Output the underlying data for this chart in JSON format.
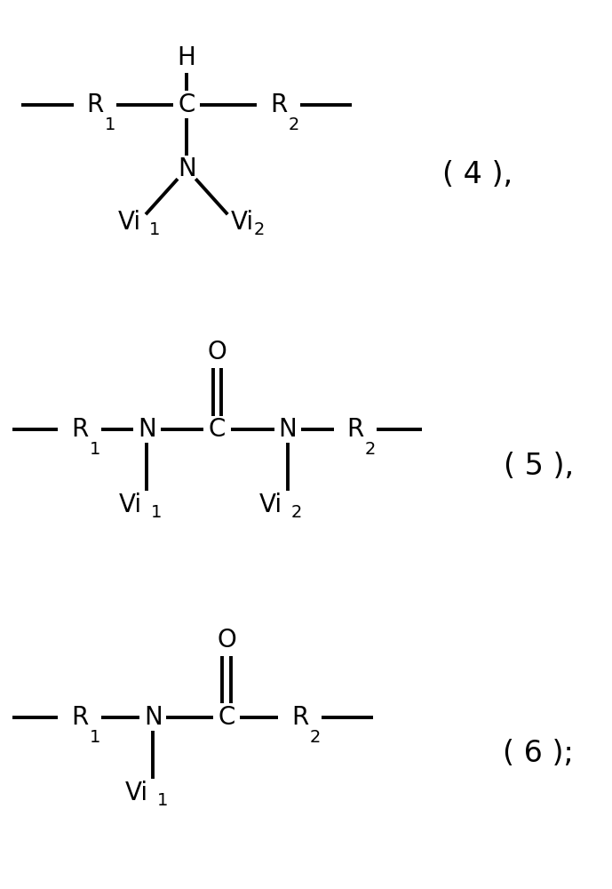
{
  "bg_color": "#ffffff",
  "line_color": "#000000",
  "text_color": "#000000",
  "lw": 2.8,
  "font_size": 20,
  "sub_font_size": 14,
  "label_font_size": 24,
  "fig_width": 6.89,
  "fig_height": 10.0,
  "dpi": 100,
  "xlim": [
    0,
    10
  ],
  "ylim": [
    0,
    14.5
  ],
  "struct4_y": 12.8,
  "struct5_y": 7.5,
  "struct6_y": 2.8,
  "label4": "( 4 ),",
  "label5": "( 5 ),",
  "label6": "( 6 );"
}
